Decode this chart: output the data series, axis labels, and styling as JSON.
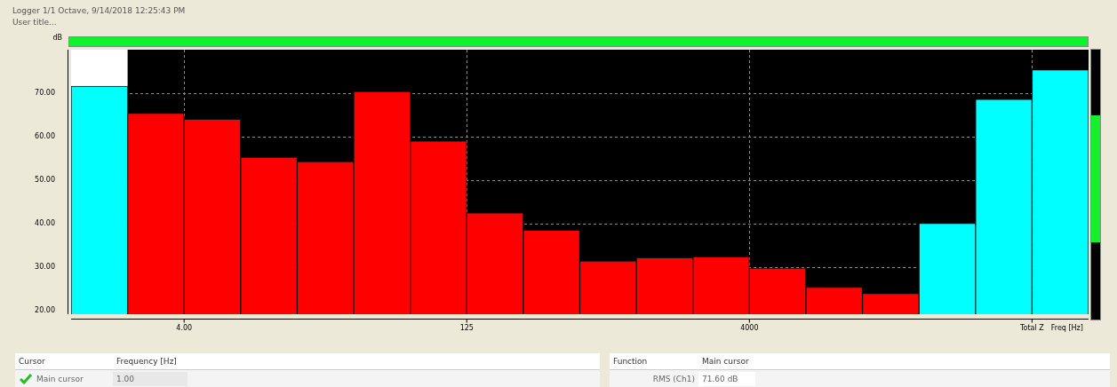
{
  "chart_data": {
    "type": "bar",
    "title": "Logger 1/1 Octave, 9/14/2018 12:25:43 PM",
    "subtitle": "User title...",
    "xlabel": "Freq [Hz]",
    "ylabel": "dB",
    "categories": [
      null,
      null,
      "4.00",
      null,
      null,
      null,
      null,
      "125",
      null,
      null,
      null,
      null,
      "4000",
      null,
      null,
      null,
      null,
      "Total Z"
    ],
    "values": [
      71.6,
      65.4,
      64.0,
      55.3,
      54.3,
      70.4,
      59.0,
      42.5,
      38.5,
      31.4,
      32.2,
      32.4,
      29.8,
      25.4,
      24.0,
      40.1,
      68.6,
      75.4
    ],
    "colors": [
      "#00ffff",
      "#ff0000",
      "#ff0000",
      "#ff0000",
      "#ff0000",
      "#ff0000",
      "#ff0000",
      "#ff0000",
      "#ff0000",
      "#ff0000",
      "#ff0000",
      "#ff0000",
      "#ff0000",
      "#ff0000",
      "#ff0000",
      "#00ffff",
      "#00ffff",
      "#00ffff"
    ],
    "ylim": [
      19.2,
      80
    ],
    "yticks": [
      {
        "value": 20,
        "label": "20.00"
      },
      {
        "value": 30,
        "label": "30.00"
      },
      {
        "value": 40,
        "label": "40.00"
      },
      {
        "value": 50,
        "label": "50.00"
      },
      {
        "value": 60,
        "label": "60.00"
      },
      {
        "value": 70,
        "label": "70.00"
      }
    ],
    "grid": true,
    "legend": false,
    "annotations": [
      "Cursor",
      "Frequency [Hz]",
      "Main cursor",
      "1.00",
      "Function",
      "Main cursor",
      "RMS (Ch1)",
      "71.60 dB"
    ]
  }
}
